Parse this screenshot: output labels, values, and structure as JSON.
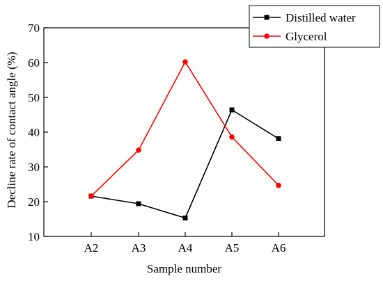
{
  "chart_data": {
    "type": "line",
    "title": "",
    "xlabel": "Sample number",
    "ylabel": "Decline rate of contact angle (%)",
    "categories": [
      "A2",
      "A3",
      "A4",
      "A5",
      "A6"
    ],
    "ylim": [
      10,
      70
    ],
    "yticks": [
      10,
      20,
      30,
      40,
      50,
      60,
      70
    ],
    "grid": false,
    "legend_position": "top-right",
    "series": [
      {
        "name": "Distilled water",
        "color": "#000000",
        "marker": "square",
        "values": [
          21.6,
          19.4,
          15.3,
          46.4,
          38.1
        ]
      },
      {
        "name": "Glycerol",
        "color": "#ff0000",
        "marker": "circle",
        "values": [
          21.6,
          34.8,
          60.2,
          38.6,
          24.7
        ]
      }
    ]
  }
}
